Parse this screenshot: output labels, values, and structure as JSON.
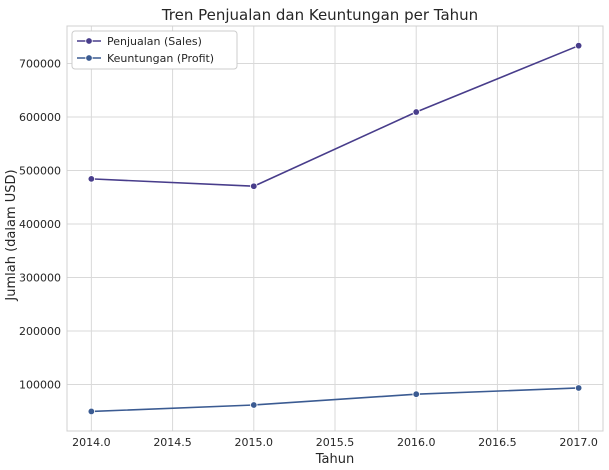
{
  "chart_data": {
    "type": "line",
    "title": "Tren Penjualan dan Keuntungan per Tahun",
    "xlabel": "Tahun",
    "ylabel": "Jumlah (dalam USD)",
    "x": [
      2014,
      2015,
      2016,
      2017
    ],
    "xlim": [
      2013.85,
      2017.15
    ],
    "ylim": [
      13000,
      770000
    ],
    "xticks": [
      "2014.0",
      "2014.5",
      "2015.0",
      "2015.5",
      "2016.0",
      "2016.5",
      "2017.0"
    ],
    "yticks": [
      "100000",
      "200000",
      "300000",
      "400000",
      "500000",
      "600000",
      "700000"
    ],
    "grid": true,
    "legend_position": "top-left",
    "series": [
      {
        "name": "Penjualan (Sales)",
        "color": "#483d8b",
        "marker": "circle",
        "values": [
          484247,
          470533,
          609206,
          733215
        ]
      },
      {
        "name": "Keuntungan (Profit)",
        "color": "#3b5b92",
        "marker": "circle",
        "values": [
          49544,
          61619,
          81795,
          93439
        ]
      }
    ]
  }
}
